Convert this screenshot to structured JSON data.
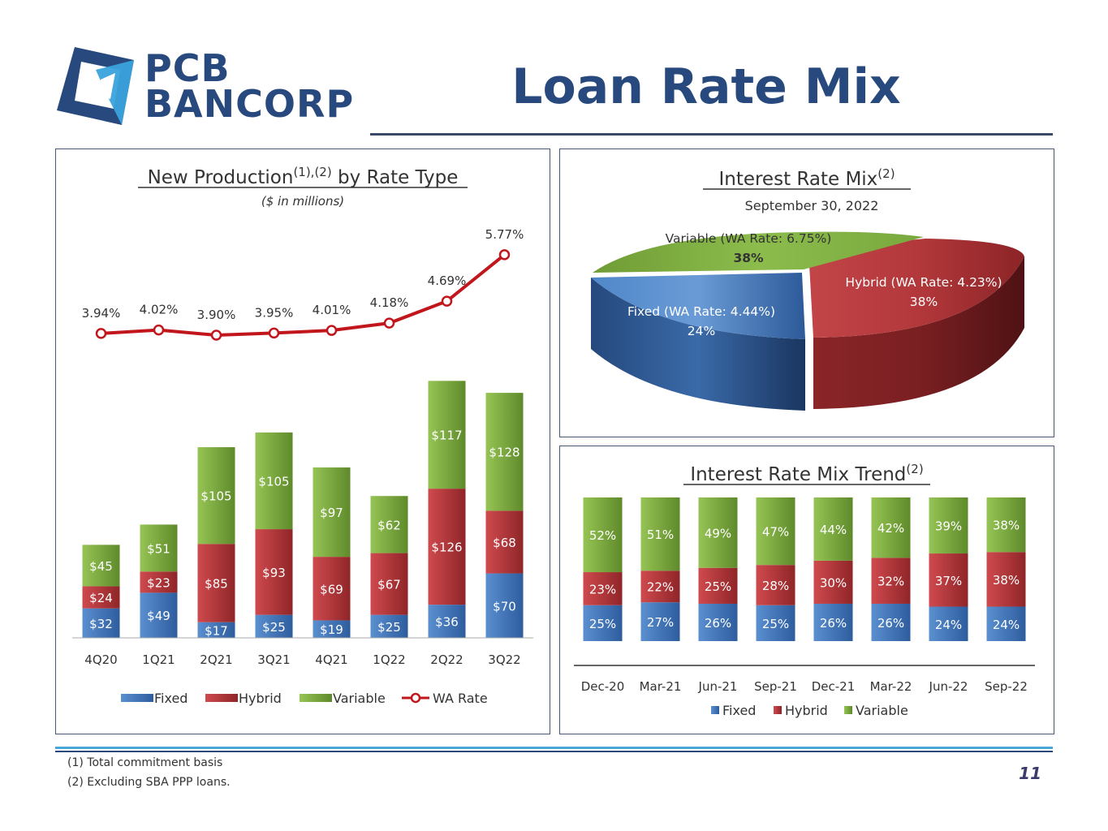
{
  "header": {
    "logo_line1": "PCB",
    "logo_line2": "BANCORP",
    "title": "Loan Rate Mix"
  },
  "footer": {
    "note1": "(1)   Total commitment basis",
    "note2": "(2)   Excluding SBA PPP loans.",
    "page_number": "11"
  },
  "colors": {
    "fixed": "#3a6fb5",
    "hybrid": "#b5363a",
    "variable": "#7aa83a",
    "wa_rate": "#c0161c",
    "navy": "#27497d"
  },
  "chart_data": [
    {
      "type": "bar",
      "stacked": true,
      "title": "New Production",
      "title_superscript": "(1),(2)",
      "title_suffix": " by Rate Type",
      "subtitle": "($ in millions)",
      "categories": [
        "4Q20",
        "1Q21",
        "2Q21",
        "3Q21",
        "4Q21",
        "1Q22",
        "2Q22",
        "3Q22"
      ],
      "series": [
        {
          "name": "Fixed",
          "values": [
            32,
            49,
            17,
            25,
            19,
            25,
            36,
            70
          ],
          "labels": [
            "$32",
            "$49",
            "$17",
            "$25",
            "$19",
            "$25",
            "$36",
            "$70"
          ]
        },
        {
          "name": "Hybrid",
          "values": [
            24,
            23,
            85,
            93,
            69,
            67,
            126,
            68
          ],
          "labels": [
            "$24",
            "$23",
            "$85",
            "$93",
            "$69",
            "$67",
            "$126",
            "$68"
          ]
        },
        {
          "name": "Variable",
          "values": [
            45,
            51,
            105,
            105,
            97,
            62,
            117,
            128
          ],
          "labels": [
            "$45",
            "$51",
            "$105",
            "$105",
            "$97",
            "$62",
            "$117",
            "$128"
          ]
        }
      ],
      "line_series": {
        "name": "WA Rate",
        "values": [
          3.94,
          4.02,
          3.9,
          3.95,
          4.01,
          4.18,
          4.69,
          5.77
        ],
        "labels": [
          "3.94%",
          "4.02%",
          "3.90%",
          "3.95%",
          "4.01%",
          "4.18%",
          "4.69%",
          "5.77%"
        ]
      },
      "legend": [
        "Fixed",
        "Hybrid",
        "Variable",
        "WA Rate"
      ],
      "legend_position": "bottom"
    },
    {
      "type": "pie",
      "style": "3d",
      "title": "Interest Rate Mix",
      "title_superscript": "(2)",
      "subtitle": "September 30, 2022",
      "slices": [
        {
          "name": "Variable (WA Rate: 6.75%)",
          "value": 38,
          "label": "38%"
        },
        {
          "name": "Hybrid (WA Rate: 4.23%)",
          "value": 38,
          "label": "38%"
        },
        {
          "name": "Fixed (WA Rate: 4.44%)",
          "value": 24,
          "label": "24%"
        }
      ]
    },
    {
      "type": "bar",
      "stacked": true,
      "percent": true,
      "title": "Interest Rate Mix Trend",
      "title_superscript": "(2)",
      "categories": [
        "Dec-20",
        "Mar-21",
        "Jun-21",
        "Sep-21",
        "Dec-21",
        "Mar-22",
        "Jun-22",
        "Sep-22"
      ],
      "series": [
        {
          "name": "Fixed",
          "values": [
            25,
            27,
            26,
            25,
            26,
            26,
            24,
            24
          ],
          "labels": [
            "25%",
            "27%",
            "26%",
            "25%",
            "26%",
            "26%",
            "24%",
            "24%"
          ]
        },
        {
          "name": "Hybrid",
          "values": [
            23,
            22,
            25,
            28,
            30,
            32,
            37,
            38
          ],
          "labels": [
            "23%",
            "22%",
            "25%",
            "28%",
            "30%",
            "32%",
            "37%",
            "38%"
          ]
        },
        {
          "name": "Variable",
          "values": [
            52,
            51,
            49,
            47,
            44,
            42,
            39,
            38
          ],
          "labels": [
            "52%",
            "51%",
            "49%",
            "47%",
            "44%",
            "42%",
            "39%",
            "38%"
          ]
        }
      ],
      "legend": [
        "Fixed",
        "Hybrid",
        "Variable"
      ],
      "legend_position": "bottom"
    }
  ]
}
